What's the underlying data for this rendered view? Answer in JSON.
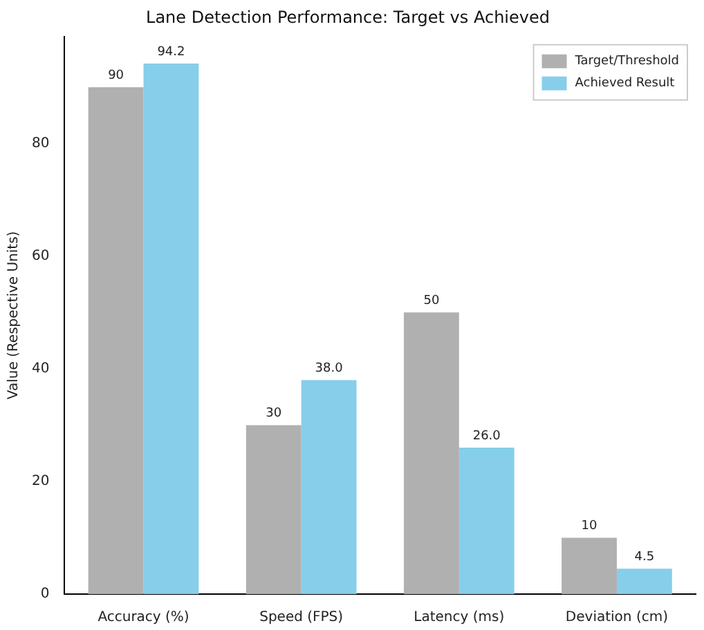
{
  "chart_data": {
    "type": "bar",
    "title": "Lane Detection Performance: Target vs Achieved",
    "ylabel": "Value (Respective Units)",
    "categories": [
      "Accuracy (%)",
      "Speed (FPS)",
      "Latency (ms)",
      "Deviation (cm)"
    ],
    "series": [
      {
        "name": "Target/Threshold",
        "color": "#b0b0b0",
        "values": [
          90,
          30,
          50,
          10
        ],
        "value_labels": [
          "90",
          "30",
          "50",
          "10"
        ]
      },
      {
        "name": "Achieved Result",
        "color": "#87ceeb",
        "values": [
          94.2,
          38.0,
          26.0,
          4.5
        ],
        "value_labels": [
          "94.2",
          "38.0",
          "26.0",
          "4.5"
        ]
      }
    ],
    "ylim": [
      0,
      99
    ],
    "yticks": [
      0,
      20,
      40,
      60,
      80
    ],
    "grid": false,
    "legend": "top right"
  }
}
